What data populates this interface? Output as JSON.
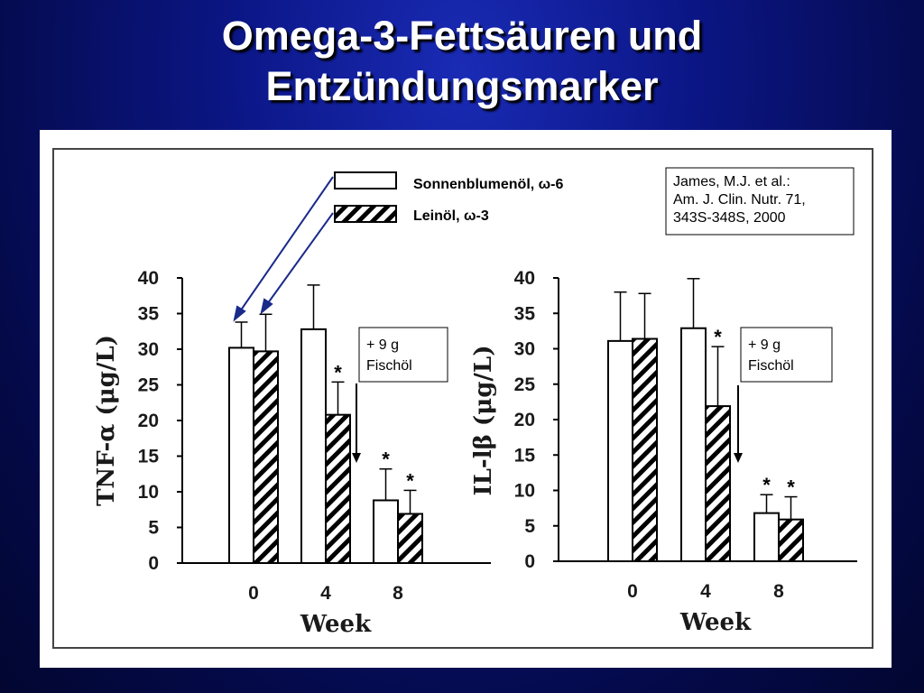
{
  "slide": {
    "title_line1": "Omega-3-Fettsäuren und",
    "title_line2": "Entzündungsmarker"
  },
  "legend": {
    "series1_label": "Sonnenblumenöl, ω-6",
    "series2_label": "Leinöl, ω-3"
  },
  "citation": {
    "line1": "James, M.J. et al.:",
    "line2": "Am. J. Clin. Nutr.  71,",
    "line3": "343S-348S, 2000"
  },
  "annotation": {
    "line1": "+ 9 g",
    "line2": "Fischöl"
  },
  "colors": {
    "background": "#0b1686",
    "bar_fill": "#ffffff",
    "bar_stroke": "#000000"
  },
  "chart_data": [
    {
      "type": "bar",
      "ylabel": "TNF-α (μg/L)",
      "xlabel": "Week",
      "categories": [
        "0",
        "4",
        "8"
      ],
      "ylim": [
        0,
        40
      ],
      "yticks": [
        0,
        5,
        10,
        15,
        20,
        25,
        30,
        35,
        40
      ],
      "series": [
        {
          "name": "Sonnenblumenöl, ω-6",
          "pattern": "open",
          "values": [
            30.2,
            32.8,
            8.8
          ],
          "errors": [
            3.6,
            6.2,
            4.4
          ],
          "significant": [
            false,
            false,
            true
          ]
        },
        {
          "name": "Leinöl, ω-3",
          "pattern": "hatched",
          "values": [
            29.7,
            20.8,
            6.9
          ],
          "errors": [
            5.2,
            4.6,
            3.3
          ],
          "significant": [
            false,
            true,
            true
          ]
        }
      ]
    },
    {
      "type": "bar",
      "ylabel": "IL-lβ (μg/L)",
      "xlabel": "Week",
      "categories": [
        "0",
        "4",
        "8"
      ],
      "ylim": [
        0,
        40
      ],
      "yticks": [
        0,
        5,
        10,
        15,
        20,
        25,
        30,
        35,
        40
      ],
      "series": [
        {
          "name": "Sonnenblumenöl, ω-6",
          "pattern": "open",
          "values": [
            31.1,
            32.9,
            6.8
          ],
          "errors": [
            6.9,
            7.0,
            2.6
          ],
          "significant": [
            false,
            false,
            true
          ]
        },
        {
          "name": "Leinöl, ω-3",
          "pattern": "hatched",
          "values": [
            31.4,
            21.9,
            5.9
          ],
          "errors": [
            6.4,
            8.4,
            3.2
          ],
          "significant": [
            false,
            true,
            true
          ]
        }
      ]
    }
  ]
}
